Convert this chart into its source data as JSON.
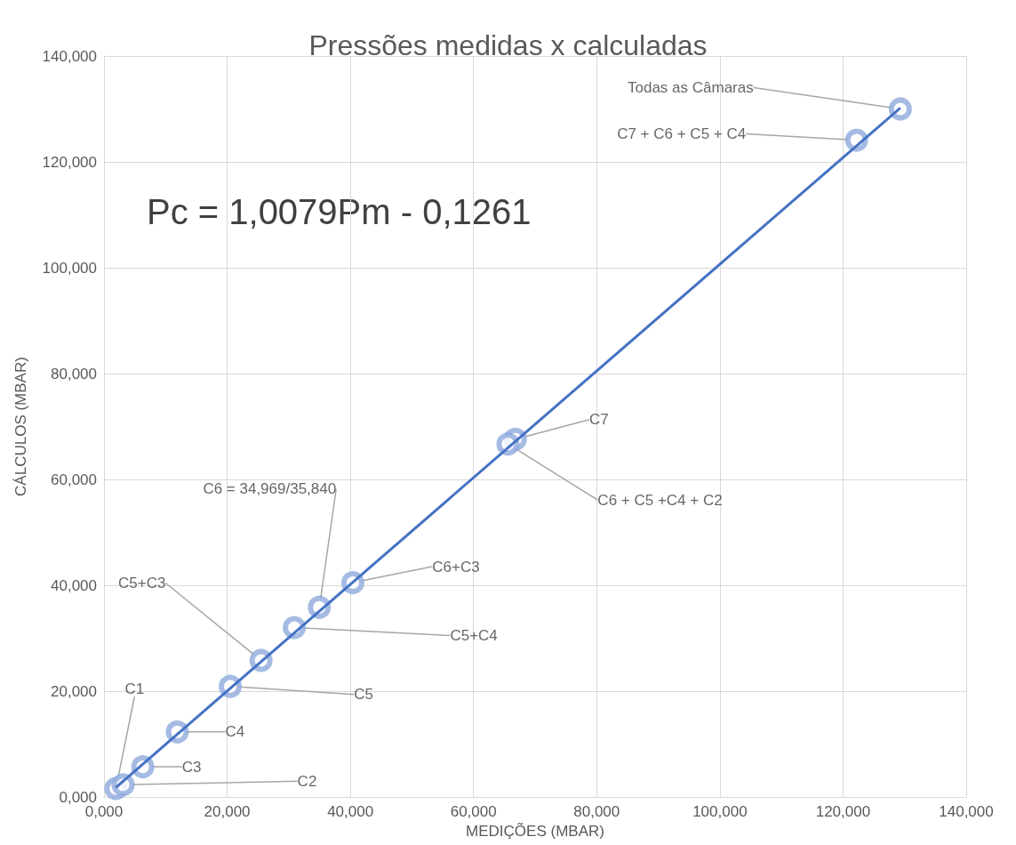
{
  "chart_data": {
    "type": "scatter",
    "title": "Pressões medidas x calculadas",
    "xlabel": "MEDIÇÕES (MBAR)",
    "ylabel": "CÁLCULOS (MBAR)",
    "annotations": [
      "Pc = 1,0079Pm - 0,1261"
    ],
    "series": [
      {
        "color": "#8faadc",
        "marker": "circle",
        "x": [
          1.93,
          3.1,
          6.3,
          11.9,
          20.5,
          25.5,
          30.9,
          34.969,
          40.4,
          66.8,
          65.6,
          122.2,
          129.3
        ],
        "values": [
          1.6,
          2.3,
          5.7,
          12.3,
          20.9,
          25.8,
          32.0,
          35.84,
          40.5,
          67.6,
          66.7,
          124.1,
          130.0
        ],
        "value_labels": [
          "C1",
          "C2",
          "C3",
          "C4",
          "C5",
          "C5+C3",
          "C5+C4",
          "C6 = 34,969/35,840",
          "C6+C3",
          "C7",
          "C6 + C5 +C4 + C2",
          "C7 + C6 + C5 + C4",
          "Todas as Câmaras"
        ]
      },
      {
        "type": "line",
        "color": "#4472c4",
        "marker": "none",
        "line_style": "solid",
        "x": [
          1.93,
          129.3
        ],
        "values": [
          1.8,
          130.2
        ]
      }
    ],
    "xlim": [
      0,
      140
    ],
    "ylim": [
      0,
      140
    ],
    "xticks": [
      {
        "value": 0,
        "label": "0,000"
      },
      {
        "value": 20,
        "label": "20,000"
      },
      {
        "value": 40,
        "label": "40,000"
      },
      {
        "value": 60,
        "label": "60,000"
      },
      {
        "value": 80,
        "label": "80,000"
      },
      {
        "value": 100,
        "label": "100,000"
      },
      {
        "value": 120,
        "label": "120,000"
      },
      {
        "value": 140,
        "label": "140,000"
      }
    ],
    "yticks": [
      {
        "value": 0,
        "label": "0,000"
      },
      {
        "value": 20,
        "label": "20,000"
      },
      {
        "value": 40,
        "label": "40,000"
      },
      {
        "value": 60,
        "label": "60,000"
      },
      {
        "value": 80,
        "label": "80,000"
      },
      {
        "value": 100,
        "label": "100,000"
      },
      {
        "value": 120,
        "label": "120,000"
      },
      {
        "value": 140,
        "label": "140,000"
      }
    ],
    "grid": true
  }
}
